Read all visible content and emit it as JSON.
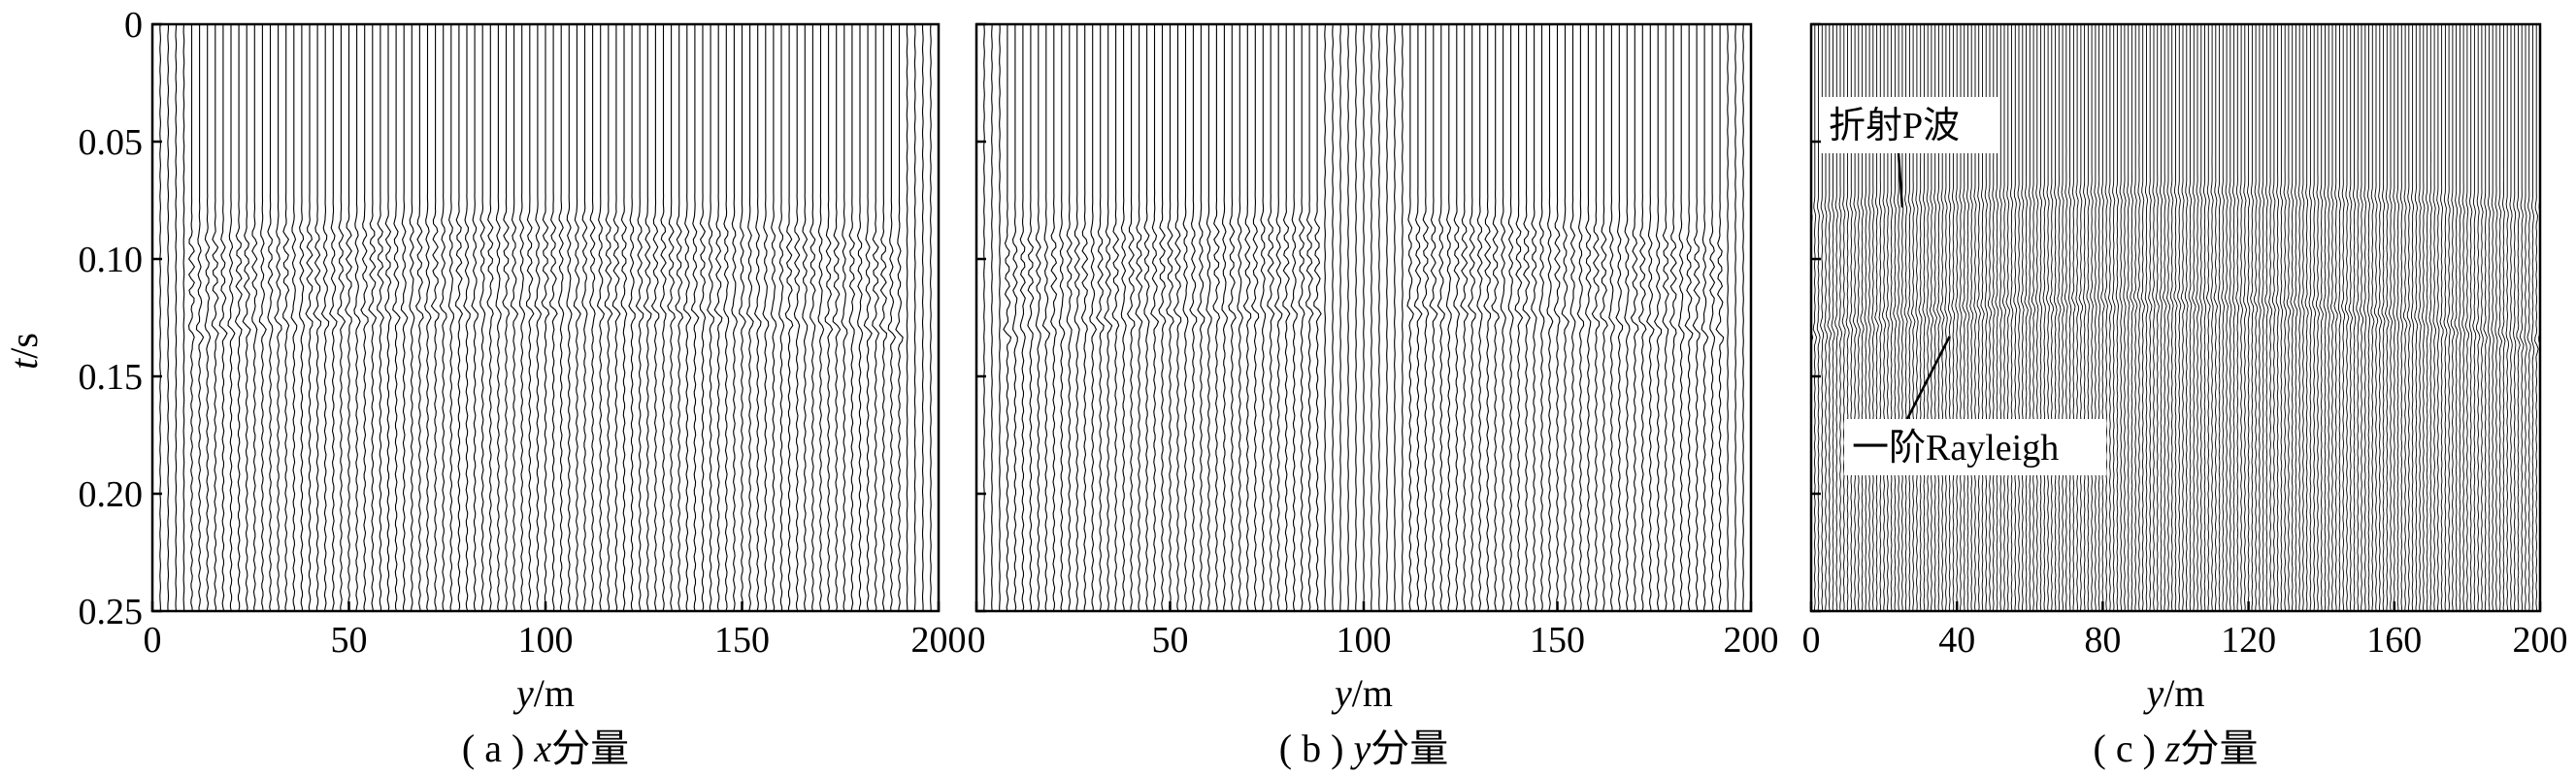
{
  "chart_data": [
    {
      "type": "seismic-wiggle",
      "panel": "a",
      "caption": {
        "prefix": "( a ) ",
        "var": "x",
        "suffix": "分量"
      },
      "xlabel": {
        "var": "y",
        "unit": "/m"
      },
      "ylabel": {
        "var": "t",
        "unit": "/s"
      },
      "xlim": [
        0,
        200
      ],
      "ylim": [
        0,
        0.25
      ],
      "y_inverted": true,
      "xticks": [
        0,
        50,
        100,
        150,
        200
      ],
      "yticks": [
        0,
        0.05,
        0.1,
        0.15,
        0.2,
        0.25
      ],
      "ytick_labels": [
        "0",
        "0.05",
        "0.10",
        "0.15",
        "0.20",
        "0.25"
      ],
      "trace_count": 101,
      "signal_x_range": [
        10,
        190
      ],
      "events": [
        {
          "t_min": 0.085,
          "t_edge": 0.097,
          "x_min": 100
        },
        {
          "t_min": 0.092,
          "t_edge": 0.104,
          "x_min": 100
        },
        {
          "t_min": 0.099,
          "t_edge": 0.111,
          "x_min": 100
        },
        {
          "t_min": 0.106,
          "t_edge": 0.118,
          "x_min": 100
        },
        {
          "t_min": 0.121,
          "t_edge": 0.134,
          "x_min": 100
        }
      ],
      "gap_x": null
    },
    {
      "type": "seismic-wiggle",
      "panel": "b",
      "caption": {
        "prefix": "( b ) ",
        "var": "y",
        "suffix": "分量"
      },
      "xlabel": {
        "var": "y",
        "unit": "/m"
      },
      "xlim": [
        0,
        200
      ],
      "ylim": [
        0,
        0.25
      ],
      "y_inverted": true,
      "xticks": [
        0,
        50,
        100,
        150,
        200
      ],
      "trace_count": 101,
      "signal_x_range": [
        8,
        192
      ],
      "events": [
        {
          "t_min": 0.085,
          "t_edge": 0.097,
          "x_min": 100
        },
        {
          "t_min": 0.092,
          "t_edge": 0.104,
          "x_min": 100
        },
        {
          "t_min": 0.099,
          "t_edge": 0.111,
          "x_min": 100
        },
        {
          "t_min": 0.106,
          "t_edge": 0.118,
          "x_min": 100
        },
        {
          "t_min": 0.121,
          "t_edge": 0.134,
          "x_min": 100
        }
      ],
      "gap_x": [
        90,
        110
      ]
    },
    {
      "type": "seismic-wiggle",
      "panel": "c",
      "caption": {
        "prefix": "( c ) ",
        "var": "z",
        "suffix": "分量"
      },
      "xlabel": {
        "var": "y",
        "unit": "/m"
      },
      "xlim": [
        0,
        200
      ],
      "ylim": [
        0,
        0.25
      ],
      "y_inverted": true,
      "xticks": [
        0,
        40,
        80,
        120,
        160,
        200
      ],
      "trace_count": 201,
      "signal_x_range": [
        0,
        200
      ],
      "events": [
        {
          "t_min": 0.073,
          "t_edge": 0.08,
          "x_min": 100
        },
        {
          "t_min": 0.118,
          "t_edge": 0.134,
          "x_min": 92
        }
      ],
      "gap_x": null,
      "annotations": [
        {
          "text": "折射P波",
          "points_to": {
            "x": 25,
            "t": 0.078
          }
        },
        {
          "text": "一阶Rayleigh",
          "points_to": {
            "x": 38,
            "t": 0.133
          }
        }
      ]
    }
  ]
}
